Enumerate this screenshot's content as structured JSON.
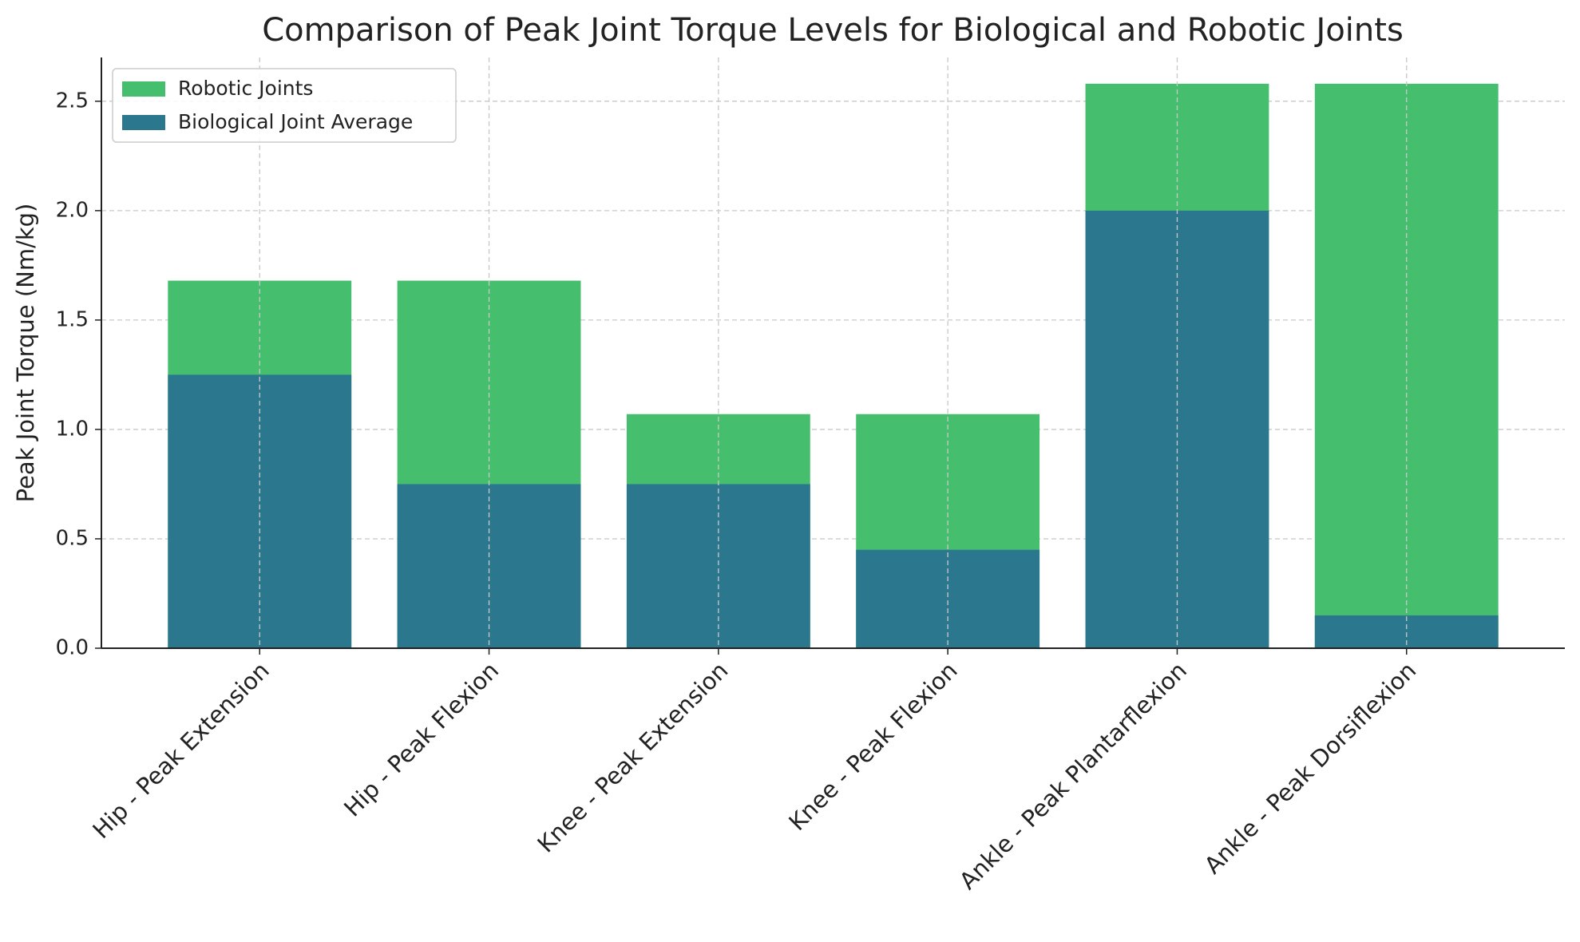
{
  "chart_data": {
    "type": "bar",
    "title": "Comparison of Peak Joint Torque Levels for Biological and Robotic Joints",
    "y_label": "Peak Joint Torque (Nm/kg)",
    "categories": [
      "Hip - Peak Extension",
      "Hip - Peak Flexion",
      "Knee - Peak Extension",
      "Knee - Peak Flexion",
      "Ankle - Peak Plantarflexion",
      "Ankle - Peak Dorsiflexion"
    ],
    "series": [
      {
        "name": "Robotic Joints",
        "color": "#45bf6d",
        "values": [
          1.68,
          1.68,
          1.07,
          1.07,
          2.58,
          2.58
        ]
      },
      {
        "name": "Biological Joint Average",
        "color": "#2b788e",
        "values": [
          1.25,
          0.75,
          0.75,
          0.45,
          2.0,
          0.15
        ]
      }
    ],
    "ylim": [
      0,
      2.7
    ],
    "yticks": [
      {
        "value": 0,
        "label": "0.0"
      },
      {
        "value": 0.5,
        "label": "0.5"
      },
      {
        "value": 1,
        "label": "1.0"
      },
      {
        "value": 1.5,
        "label": "1.5"
      },
      {
        "value": 2,
        "label": "2.0"
      },
      {
        "value": 2.5,
        "label": "2.5"
      }
    ],
    "grid": true,
    "legend": "upper-left"
  }
}
